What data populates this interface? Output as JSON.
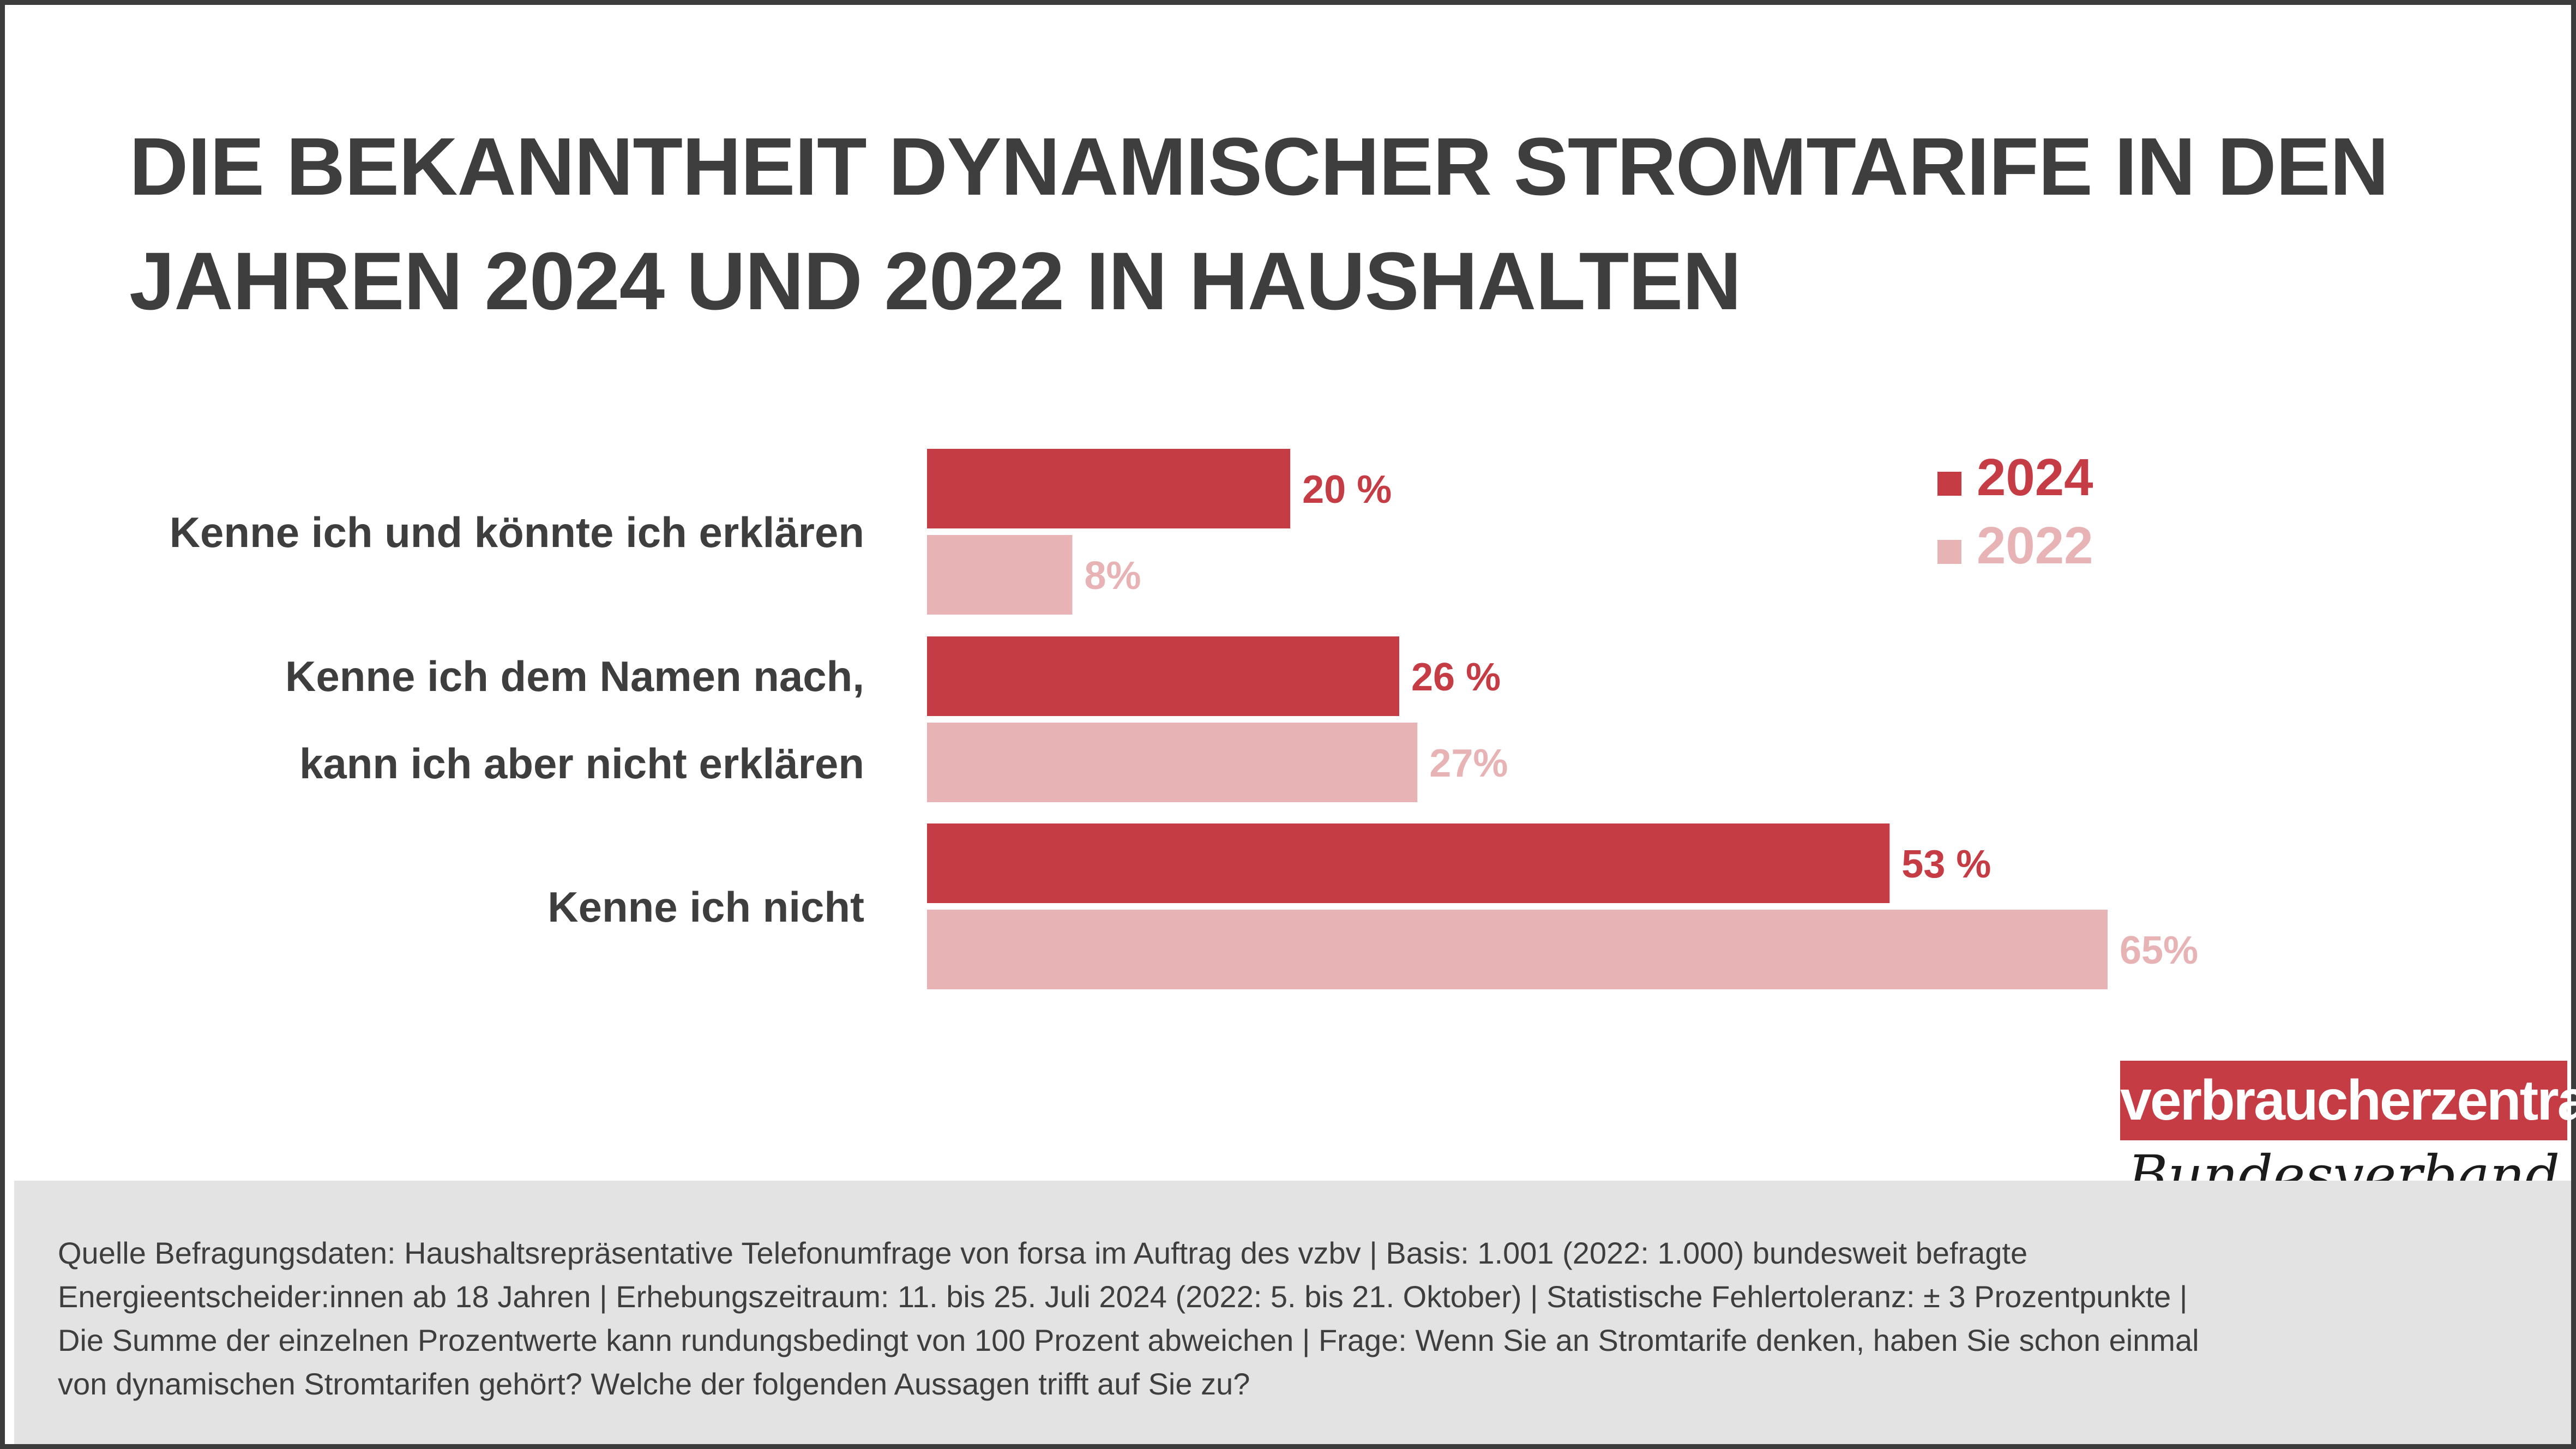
{
  "title": "DIE BEKANNTHEIT DYNAMISCHER STROMTARIFE IN DEN\nJAHREN 2024 UND 2022 IN HAUSHALTEN",
  "colors": {
    "series_2024": "#c63c44",
    "series_2022": "#e8b3b5"
  },
  "chart_data": {
    "type": "bar",
    "orientation": "horizontal",
    "title": "DIE BEKANNTHEIT DYNAMISCHER STROMTARIFE IN DEN JAHREN 2024 UND 2022 IN HAUSHALTEN",
    "categories": [
      [
        "Kenne ich und könnte ich erklären"
      ],
      [
        "Kenne ich dem Namen nach,",
        "kann ich aber nicht erklären"
      ],
      [
        "Kenne ich nicht"
      ]
    ],
    "series": [
      {
        "name": "2024",
        "values": [
          20,
          26,
          53
        ],
        "labels": [
          "20 %",
          "26 %",
          "53 %"
        ],
        "color": "#c63c44"
      },
      {
        "name": "2022",
        "values": [
          8,
          27,
          65
        ],
        "labels": [
          "8%",
          "27%",
          "65%"
        ],
        "color": "#e8b3b5"
      }
    ],
    "xlim": [
      0,
      65
    ],
    "grid": false,
    "legend": "top-right"
  },
  "logo": {
    "line1": "verbraucherzentrale",
    "line2": "Bundesverband"
  },
  "footer": "Quelle Befragungsdaten: Haushaltsrepräsentative Telefonumfrage von forsa im Auftrag des vzbv | Basis: 1.001 (2022: 1.000) bundesweit befragte\nEnergieentscheider:innen ab 18 Jahren | Erhebungszeitraum: 11. bis 25. Juli 2024 (2022: 5. bis 21. Oktober) | Statistische Fehlertoleranz: ± 3 Prozentpunkte |\nDie Summe der einzelnen Prozentwerte kann rundungsbedingt von 100 Prozent abweichen | Frage: Wenn Sie an Stromtarife denken, haben Sie schon einmal\nvon dynamischen Stromtarifen gehört? Welche der folgenden Aussagen trifft auf Sie zu?"
}
